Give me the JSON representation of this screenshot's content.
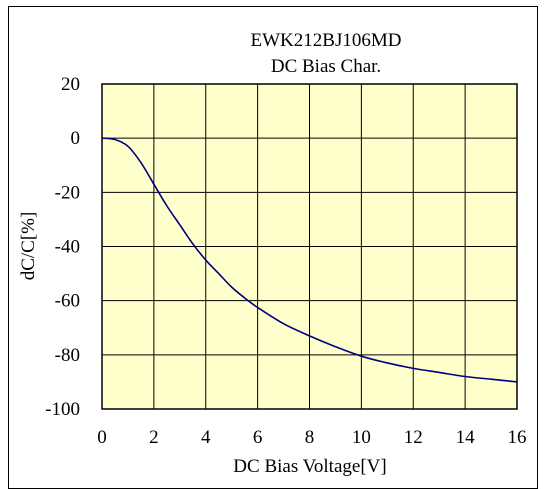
{
  "chart_data": {
    "type": "line",
    "title_line1": "EWK212BJ106MD",
    "title_line2": "DC Bias Char.",
    "xlabel": "DC Bias Voltage[V]",
    "ylabel": "dC/C[%]",
    "xlim": [
      0,
      16
    ],
    "ylim": [
      -100,
      20
    ],
    "xticks": [
      0,
      2,
      4,
      6,
      8,
      10,
      12,
      14,
      16
    ],
    "yticks": [
      20,
      0,
      -20,
      -40,
      -60,
      -80,
      -100
    ],
    "xtick_labels": [
      "0",
      "2",
      "4",
      "6",
      "8",
      "10",
      "12",
      "14",
      "16"
    ],
    "ytick_labels": [
      "20",
      "0",
      "-20",
      "-40",
      "-60",
      "-80",
      "-100"
    ],
    "grid": true,
    "plot_background": "#FFFFCC",
    "line_color": "#000080",
    "series": [
      {
        "x": [
          0,
          0.5,
          1.0,
          1.5,
          2.0,
          2.5,
          3.0,
          3.5,
          4.0,
          4.5,
          5.0,
          5.5,
          6.0,
          7.0,
          8.0,
          9.0,
          10.0,
          11.0,
          12.0,
          13.0,
          14.0,
          15.0,
          16.0
        ],
        "y": [
          0,
          -0.5,
          -3,
          -9,
          -17,
          -25,
          -32,
          -39,
          -45,
          -50,
          -55,
          -59,
          -62.5,
          -68.5,
          -73,
          -77,
          -80.5,
          -83,
          -85,
          -86.5,
          -88,
          -89,
          -90
        ]
      }
    ]
  }
}
